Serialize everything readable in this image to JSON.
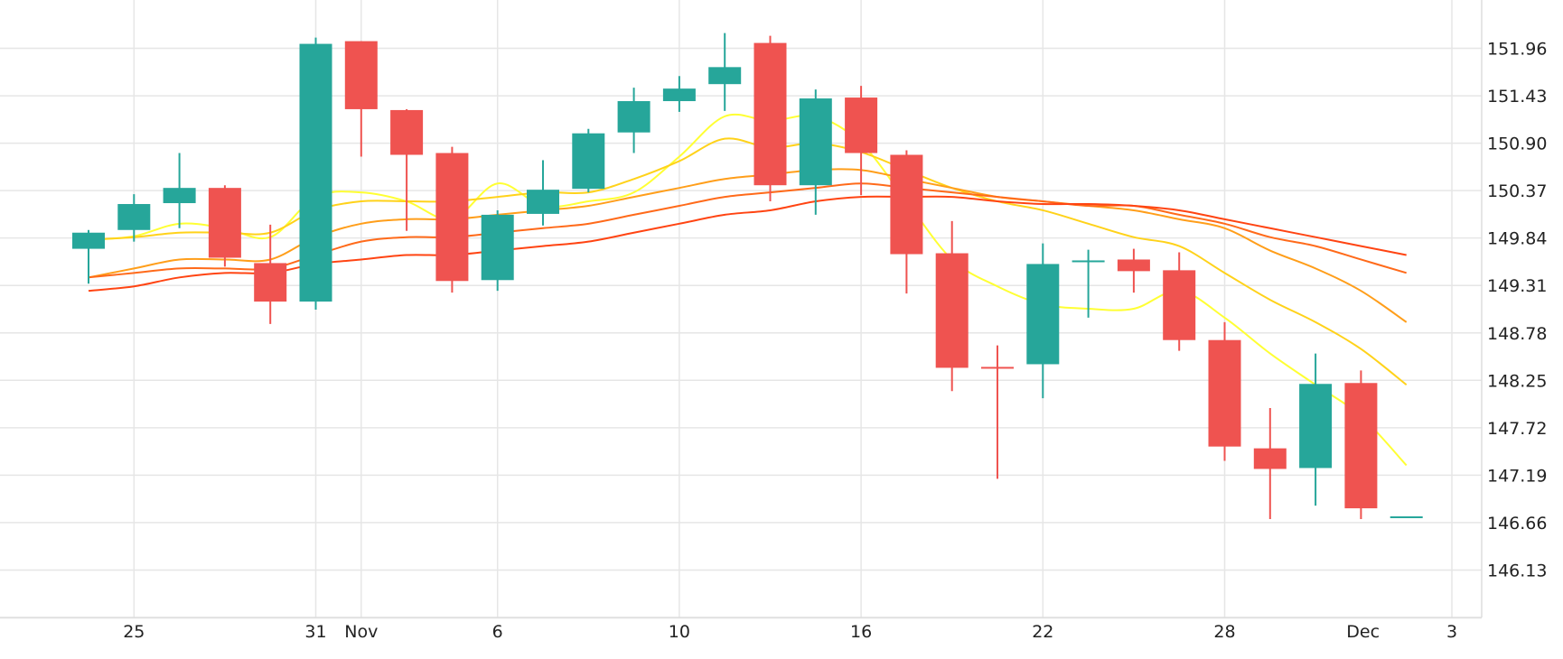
{
  "chart_data": {
    "type": "candlestick",
    "title": "",
    "xlabel": "",
    "ylabel": "",
    "grid": true,
    "y_axis_side": "right",
    "ylim": [
      145.6,
      152.5
    ],
    "x_ticks": [
      {
        "label": "25",
        "slot": 1
      },
      {
        "label": "31",
        "slot": 5
      },
      {
        "label": "Nov",
        "slot": 6
      },
      {
        "label": "6",
        "slot": 9
      },
      {
        "label": "10",
        "slot": 13
      },
      {
        "label": "16",
        "slot": 17
      },
      {
        "label": "22",
        "slot": 21
      },
      {
        "label": "28",
        "slot": 25
      },
      {
        "label": "Dec",
        "slot": 29
      },
      {
        "label": "3",
        "slot": 30
      }
    ],
    "y_ticks": [
      "151.96",
      "151.43",
      "150.90",
      "150.37",
      "149.84",
      "149.31",
      "148.78",
      "148.25",
      "147.72",
      "147.19",
      "146.66",
      "146.13"
    ],
    "y_tick_values": [
      151.96,
      151.43,
      150.9,
      150.37,
      149.84,
      149.31,
      148.78,
      148.25,
      147.72,
      147.19,
      146.66,
      146.13
    ],
    "colors": {
      "up": "#26a69a",
      "down": "#ef5350",
      "grid": "#e6e6e6",
      "axis_text": "#222222"
    },
    "candles": [
      {
        "o": 149.72,
        "h": 149.93,
        "l": 149.33,
        "c": 149.9
      },
      {
        "o": 149.93,
        "h": 150.33,
        "l": 149.8,
        "c": 150.22
      },
      {
        "o": 150.23,
        "h": 150.79,
        "l": 149.95,
        "c": 150.4
      },
      {
        "o": 150.4,
        "h": 150.43,
        "l": 149.52,
        "c": 149.62
      },
      {
        "o": 149.56,
        "h": 149.99,
        "l": 148.88,
        "c": 149.13
      },
      {
        "o": 149.13,
        "h": 152.08,
        "l": 149.04,
        "c": 152.01
      },
      {
        "o": 152.04,
        "h": 152.04,
        "l": 150.75,
        "c": 151.28
      },
      {
        "o": 151.27,
        "h": 151.28,
        "l": 149.92,
        "c": 150.77
      },
      {
        "o": 150.79,
        "h": 150.86,
        "l": 149.23,
        "c": 149.36
      },
      {
        "o": 149.37,
        "h": 150.15,
        "l": 149.25,
        "c": 150.1
      },
      {
        "o": 150.11,
        "h": 150.71,
        "l": 149.98,
        "c": 150.38
      },
      {
        "o": 150.39,
        "h": 151.06,
        "l": 150.35,
        "c": 151.01
      },
      {
        "o": 151.02,
        "h": 151.52,
        "l": 150.79,
        "c": 151.37
      },
      {
        "o": 151.37,
        "h": 151.65,
        "l": 151.25,
        "c": 151.51
      },
      {
        "o": 151.56,
        "h": 152.13,
        "l": 151.26,
        "c": 151.75
      },
      {
        "o": 152.02,
        "h": 152.1,
        "l": 150.25,
        "c": 150.43
      },
      {
        "o": 150.43,
        "h": 151.5,
        "l": 150.1,
        "c": 151.4
      },
      {
        "o": 151.41,
        "h": 151.54,
        "l": 150.32,
        "c": 150.79
      },
      {
        "o": 150.77,
        "h": 150.82,
        "l": 149.22,
        "c": 149.66
      },
      {
        "o": 149.67,
        "h": 150.03,
        "l": 148.13,
        "c": 148.39
      },
      {
        "o": 148.4,
        "h": 148.64,
        "l": 147.15,
        "c": 148.39
      },
      {
        "o": 148.43,
        "h": 149.78,
        "l": 148.05,
        "c": 149.55
      },
      {
        "o": 149.59,
        "h": 149.71,
        "l": 148.95,
        "c": 149.59
      },
      {
        "o": 149.6,
        "h": 149.72,
        "l": 149.23,
        "c": 149.47
      },
      {
        "o": 149.48,
        "h": 149.68,
        "l": 148.58,
        "c": 148.7
      },
      {
        "o": 148.7,
        "h": 148.9,
        "l": 147.35,
        "c": 147.51
      },
      {
        "o": 147.49,
        "h": 147.94,
        "l": 146.7,
        "c": 147.26
      },
      {
        "o": 147.27,
        "h": 148.55,
        "l": 146.85,
        "c": 148.21
      },
      {
        "o": 148.22,
        "h": 148.36,
        "l": 146.7,
        "c": 146.82
      },
      {
        "o": 146.73,
        "h": 146.73,
        "l": 146.73,
        "c": 146.73
      }
    ],
    "moving_averages": [
      {
        "color": "#ffff33",
        "values": [
          149.82,
          149.86,
          150.0,
          149.95,
          149.85,
          150.3,
          150.35,
          150.25,
          150.05,
          150.45,
          150.2,
          150.25,
          150.35,
          150.75,
          151.2,
          151.15,
          151.2,
          150.9,
          150.25,
          149.6,
          149.3,
          149.1,
          149.05,
          149.05,
          149.25,
          148.95,
          148.55,
          148.2,
          147.85,
          147.3
        ]
      },
      {
        "color": "#ffd21a",
        "values": [
          149.82,
          149.85,
          149.9,
          149.9,
          149.9,
          150.15,
          150.25,
          150.25,
          150.25,
          150.3,
          150.35,
          150.35,
          150.5,
          150.7,
          150.95,
          150.85,
          150.9,
          150.8,
          150.6,
          150.4,
          150.25,
          150.15,
          150.0,
          149.85,
          149.75,
          149.45,
          149.15,
          148.9,
          148.6,
          148.2
        ]
      },
      {
        "color": "#ff9e1a",
        "values": [
          149.4,
          149.5,
          149.6,
          149.6,
          149.6,
          149.85,
          150.0,
          150.05,
          150.05,
          150.1,
          150.15,
          150.2,
          150.3,
          150.4,
          150.5,
          150.55,
          150.6,
          150.6,
          150.5,
          150.4,
          150.3,
          150.25,
          150.2,
          150.15,
          150.05,
          149.95,
          149.7,
          149.5,
          149.25,
          148.9
        ]
      },
      {
        "color": "#ff6a1a",
        "values": [
          149.4,
          149.45,
          149.5,
          149.5,
          149.5,
          149.65,
          149.8,
          149.85,
          149.85,
          149.9,
          149.95,
          150.0,
          150.1,
          150.2,
          150.3,
          150.35,
          150.4,
          150.45,
          150.4,
          150.35,
          150.3,
          150.25,
          150.2,
          150.2,
          150.1,
          150.0,
          149.85,
          149.75,
          149.6,
          149.45
        ]
      },
      {
        "color": "#ff4412",
        "values": [
          149.25,
          149.3,
          149.4,
          149.45,
          149.45,
          149.55,
          149.6,
          149.65,
          149.65,
          149.7,
          149.75,
          149.8,
          149.9,
          150.0,
          150.1,
          150.15,
          150.25,
          150.3,
          150.3,
          150.3,
          150.25,
          150.22,
          150.22,
          150.2,
          150.15,
          150.05,
          149.95,
          149.85,
          149.75,
          149.65
        ]
      }
    ]
  }
}
